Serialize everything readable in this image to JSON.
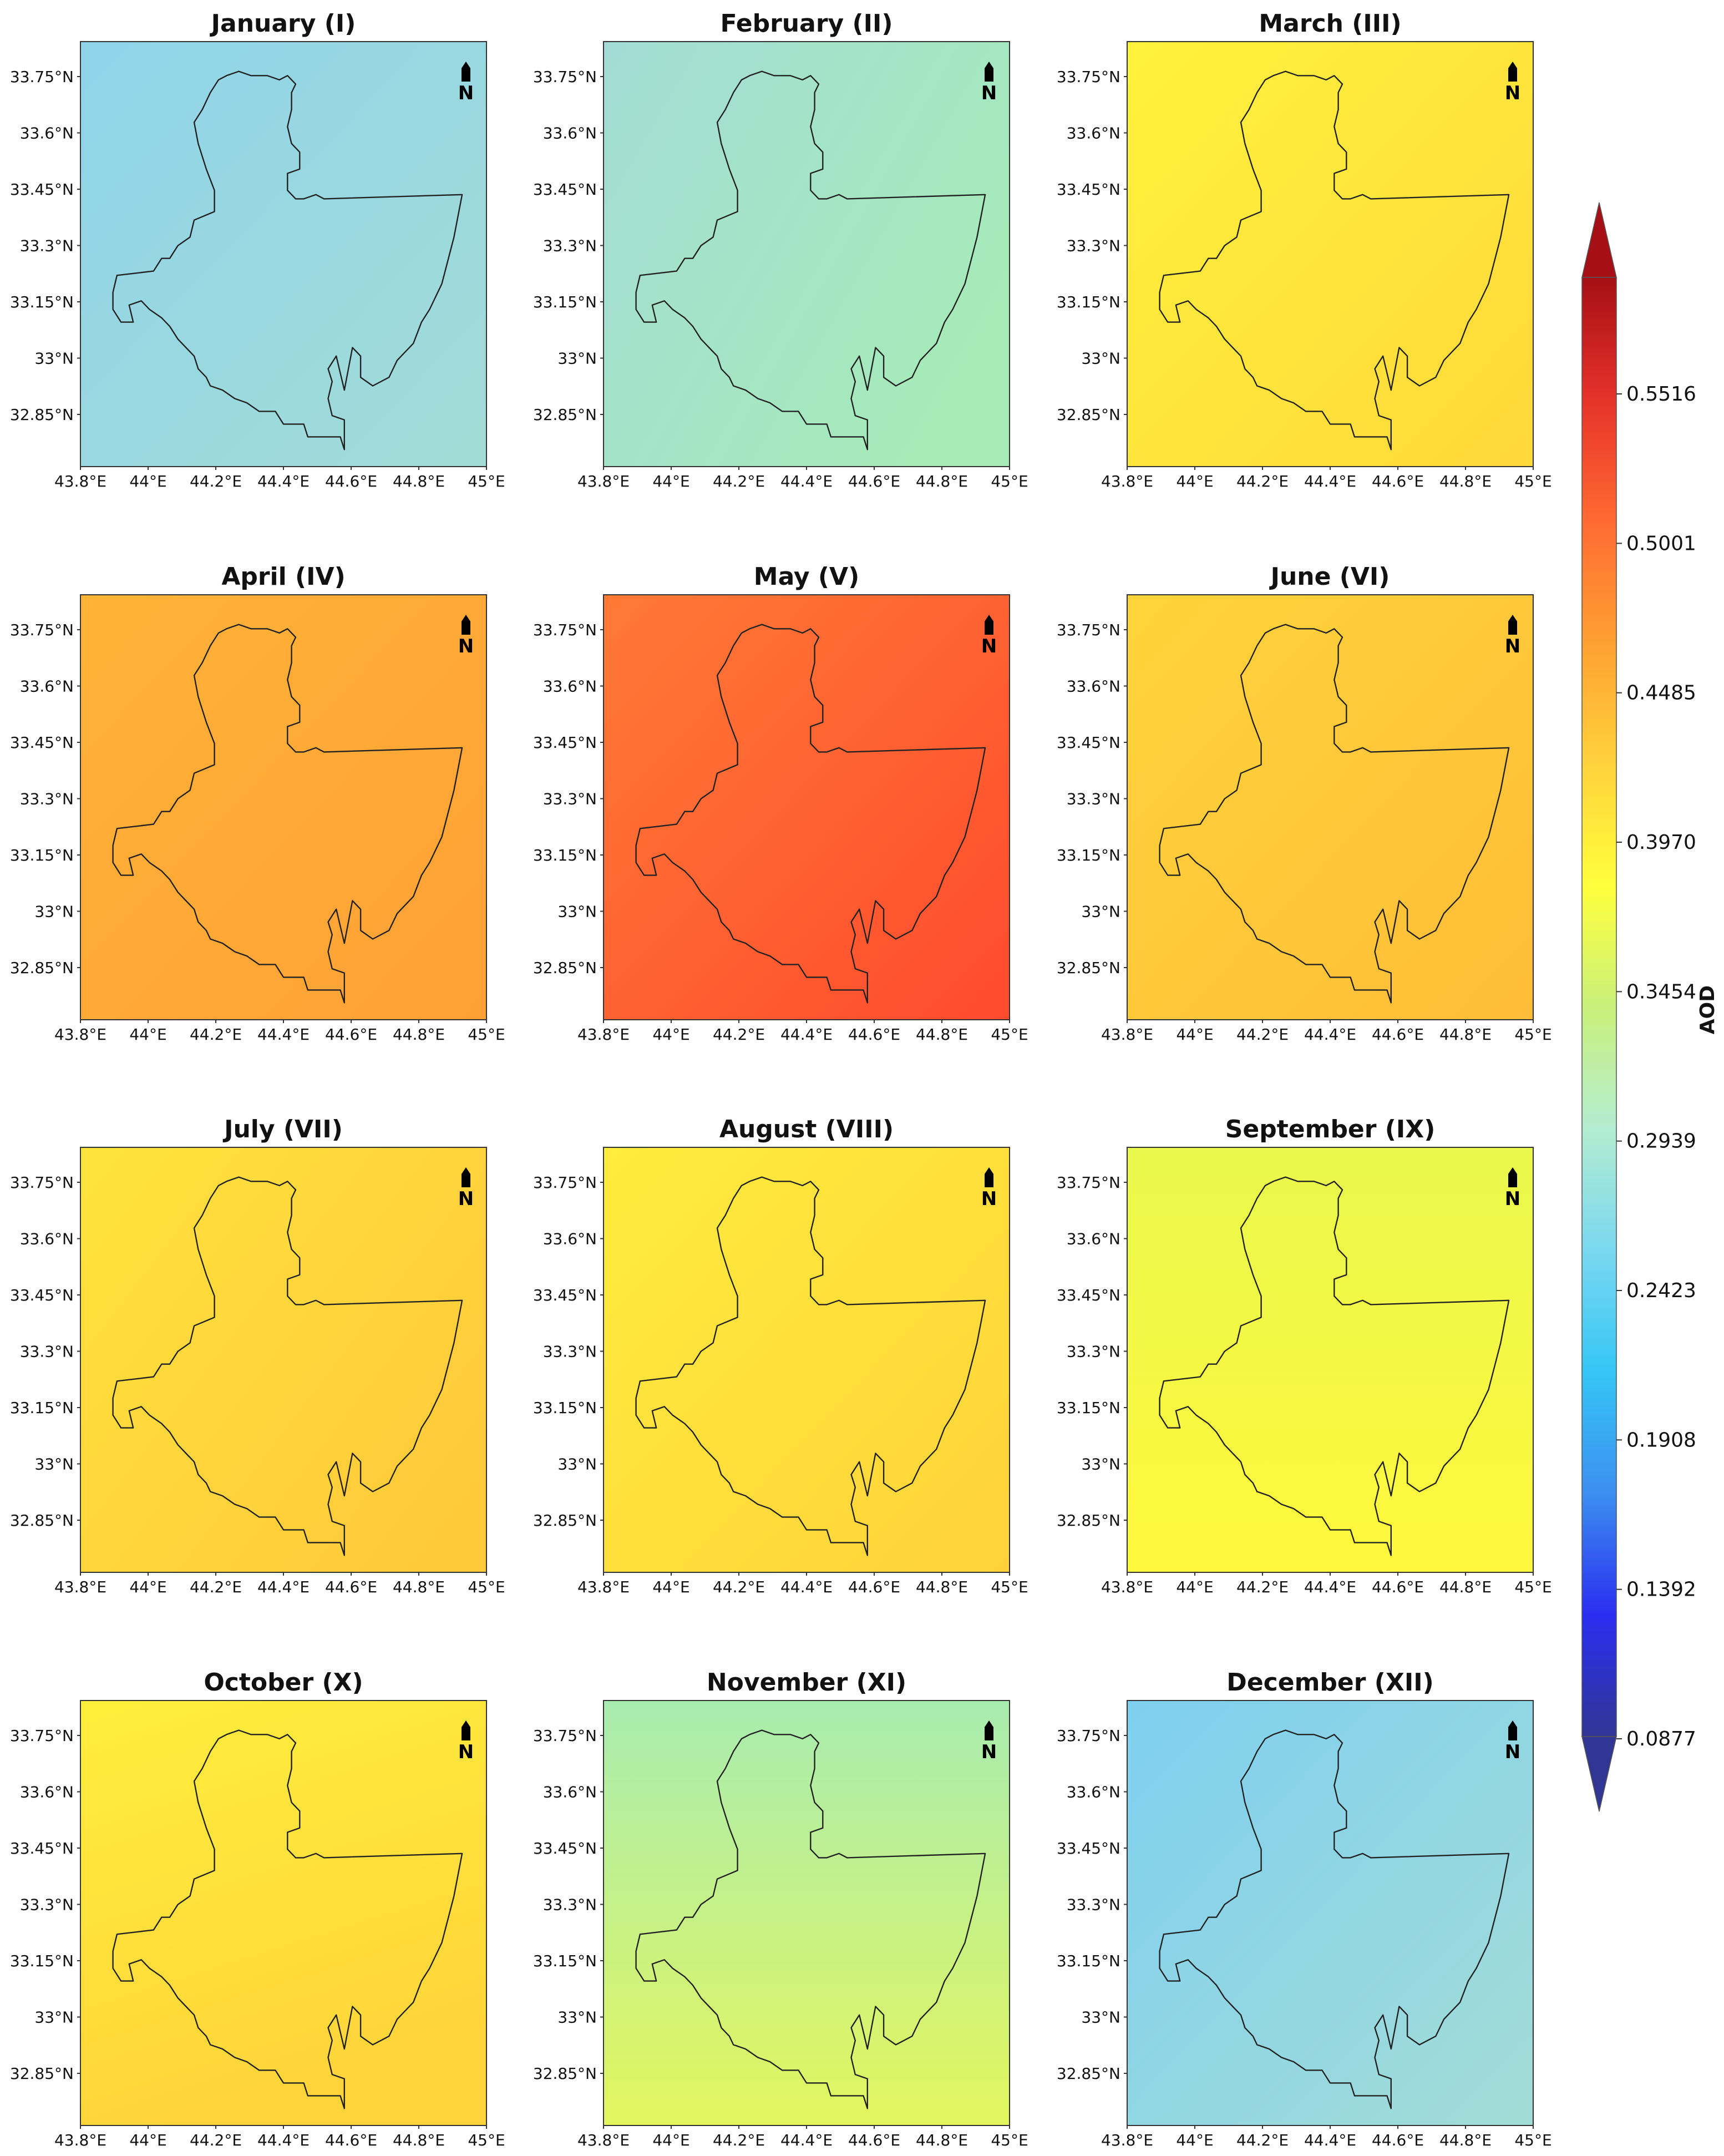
{
  "figure": {
    "colorbar": {
      "title": "AOD",
      "tick_labels": [
        "0.0877",
        "0.1392",
        "0.1908",
        "0.2423",
        "0.2939",
        "0.3454",
        "0.3970",
        "0.4485",
        "0.5001",
        "0.5516"
      ],
      "colors": [
        "#313695",
        "#2a2ef0",
        "#3c8ff0",
        "#35c6f5",
        "#7ad8f0",
        "#b3ecd0",
        "#c9f07a",
        "#ffff3c",
        "#ffd23c",
        "#ffa032",
        "#ff6a32",
        "#e6322a",
        "#a50f15"
      ]
    },
    "lat_tick_labels": [
      "33.75°N",
      "33.6°N",
      "33.45°N",
      "33.3°N",
      "33.15°N",
      "33°N",
      "32.85°N"
    ],
    "lon_tick_labels": [
      "43.8°E",
      "44°E",
      "44.2°E",
      "44.4°E",
      "44.6°E",
      "44.8°E",
      "45°E"
    ],
    "north_arrow_label": "N",
    "panels": [
      {
        "title": "January (I)",
        "aod_range": [
          0.27,
          0.3
        ],
        "colors": [
          "#8fd4ea",
          "#a3dcd6"
        ]
      },
      {
        "title": "February (II)",
        "aod_range": [
          0.29,
          0.32
        ],
        "colors": [
          "#a3dcd6",
          "#a6ebb8"
        ]
      },
      {
        "title": "March (III)",
        "aod_range": [
          0.4,
          0.43
        ],
        "colors": [
          "#fff23c",
          "#ffd83a"
        ]
      },
      {
        "title": "April (IV)",
        "aod_range": [
          0.45,
          0.48
        ],
        "colors": [
          "#ffb338",
          "#ffa035"
        ]
      },
      {
        "title": "May (V)",
        "aod_range": [
          0.49,
          0.54
        ],
        "colors": [
          "#ff7a35",
          "#ff4a2e"
        ]
      },
      {
        "title": "June (VI)",
        "aod_range": [
          0.42,
          0.45
        ],
        "colors": [
          "#ffd43a",
          "#ffbc38"
        ]
      },
      {
        "title": "July (VII)",
        "aod_range": [
          0.41,
          0.44
        ],
        "colors": [
          "#ffe33c",
          "#ffc93a"
        ]
      },
      {
        "title": "August (VIII)",
        "aod_range": [
          0.41,
          0.43
        ],
        "colors": [
          "#ffec3c",
          "#ffd23a"
        ]
      },
      {
        "title": "September (IX)",
        "aod_range": [
          0.37,
          0.4
        ],
        "colors": [
          "#e9f84c",
          "#fff83c"
        ]
      },
      {
        "title": "October (X)",
        "aod_range": [
          0.4,
          0.43
        ],
        "colors": [
          "#ffee3c",
          "#ffd43a"
        ]
      },
      {
        "title": "November (XI)",
        "aod_range": [
          0.32,
          0.37
        ],
        "colors": [
          "#a8ecb0",
          "#e3f65e"
        ]
      },
      {
        "title": "December (XII)",
        "aod_range": [
          0.26,
          0.29
        ],
        "colors": [
          "#7ecff0",
          "#a3dcd6"
        ]
      }
    ]
  }
}
